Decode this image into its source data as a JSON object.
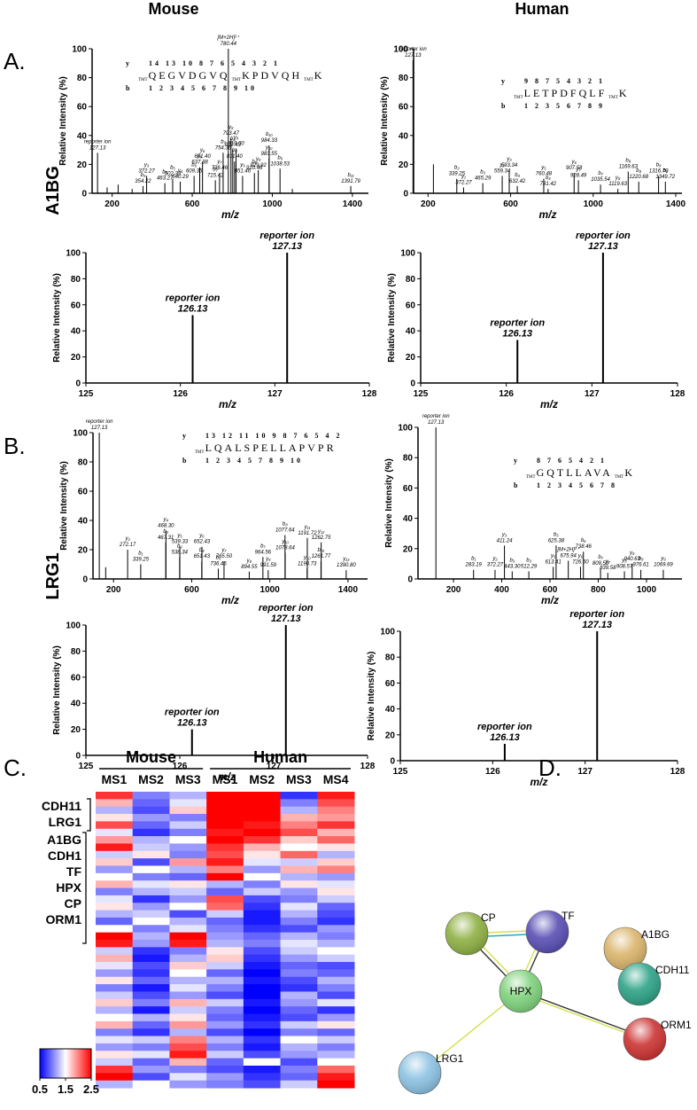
{
  "headers": {
    "columns": [
      "Mouse",
      "Human"
    ],
    "rows": [
      {
        "letter": "A.",
        "protein": "A1BG"
      },
      {
        "letter": "B.",
        "protein": "LRG1"
      }
    ],
    "panel_c": "C.",
    "panel_d": "D."
  },
  "network": {
    "nodes": [
      {
        "label": "CP",
        "color": "#8fb044"
      },
      {
        "label": "TF",
        "color": "#5a4fb4"
      },
      {
        "label": "A1BG",
        "color": "#dab46c"
      },
      {
        "label": "HPX",
        "color": "#7fd27c"
      },
      {
        "label": "CDH11",
        "color": "#2ea387"
      },
      {
        "label": "ORM1",
        "color": "#cc3333"
      },
      {
        "label": "LRG1",
        "color": "#8cc2e2"
      }
    ]
  },
  "chart_data": [
    {
      "type": "spectrum",
      "color": "#000000",
      "x_label": "m/z",
      "y_label": "Relative Intensity (%)",
      "xlim": [
        100,
        1480
      ],
      "xticks": [
        200,
        600,
        1000,
        1400
      ],
      "ylim": [
        0,
        100
      ],
      "yticks": [
        0,
        20,
        40,
        60,
        80,
        100
      ],
      "x": [
        127.13,
        175,
        230,
        300,
        354.22,
        372.27,
        463.27,
        502.33,
        540.29,
        609.35,
        637.38,
        651.4,
        715.42,
        736.46,
        754.36,
        780.44,
        793.47,
        802.43,
        811.4,
        819.0,
        851.46,
        910.46,
        929.92,
        983.55,
        984.33,
        1038.53,
        1100,
        1391.79
      ],
      "values": [
        28,
        4,
        6,
        3,
        5,
        12,
        7,
        10,
        8,
        12,
        18,
        22,
        9,
        14,
        28,
        100,
        38,
        30,
        22,
        31,
        12,
        14,
        16,
        24,
        33,
        17,
        3,
        5
      ],
      "peak_labels": [
        [
          "reporter ion",
          "127.13"
        ],
        null,
        null,
        null,
        [
          "b₃",
          "354.22"
        ],
        [
          "y₃",
          "372.27"
        ],
        [
          "b₃",
          "463.27"
        ],
        [
          "b₅",
          "502.33"
        ],
        [
          "y₄",
          "540.29"
        ],
        [
          "b₆",
          "609.35"
        ],
        [
          "y₅",
          "637.38"
        ],
        [
          "y₆",
          "651.40"
        ],
        [
          "b₇",
          "715.42"
        ],
        [
          "y₇",
          "736.46"
        ],
        [
          "b₇",
          "754.36"
        ],
        [
          "[M+2H]²⁺",
          "780.44"
        ],
        [
          "y₈",
          "793.47"
        ],
        [
          "b₈",
          "802.43"
        ],
        [
          "b₈",
          "811.40"
        ],
        [
          "y₉",
          "819.00"
        ],
        [
          "y₉",
          "851.46"
        ],
        [
          "b₉",
          "910.46"
        ],
        [
          "y₉",
          "929.92"
        ],
        [
          "y₁₀",
          "983.55"
        ],
        [
          "b₁₀",
          "984.33"
        ],
        [
          "b₉",
          "1038.53"
        ],
        null,
        [
          "b₁₁",
          "1391.79"
        ]
      ],
      "peptide": {
        "y_label": "y",
        "y_numbers": "14 13 10 8 7 6 5 4 3 2 1",
        "sequence": [
          "TMT",
          "QEGVDGVQ",
          "TMT",
          "KPDVQH",
          "TMT",
          "K"
        ],
        "b_label": "b",
        "b_numbers": "1 2 3 4 5 6 7 8 9 10"
      }
    },
    {
      "type": "spectrum",
      "color": "#000000",
      "x_label": "m/z",
      "y_label": "Relative Intensity (%)",
      "xlim": [
        130,
        1430
      ],
      "xticks": [
        200,
        600,
        1000,
        1400
      ],
      "ylim": [
        0,
        100
      ],
      "yticks": [
        0,
        20,
        40,
        60,
        80,
        100
      ],
      "x": [
        127.13,
        226,
        339.25,
        372.27,
        465.29,
        559.34,
        593.34,
        632.42,
        760.48,
        781.42,
        907.58,
        928.49,
        1035.54,
        1119.63,
        1169.63,
        1220.68,
        1316.7,
        1349.72
      ],
      "values": [
        92,
        20,
        10,
        4,
        7,
        12,
        16,
        5,
        10,
        3,
        14,
        9,
        6,
        3,
        15,
        8,
        12,
        8
      ],
      "peak_labels": [
        [
          "reporter ion",
          "127.13"
        ],
        null,
        [
          "b₃",
          "339.25"
        ],
        [
          "y₁",
          "372.27"
        ],
        [
          "b₃",
          "465.29"
        ],
        [
          "y₂",
          "559.34"
        ],
        [
          "y₃",
          "593.34"
        ],
        [
          "b₄",
          "632.42"
        ],
        [
          "y₅",
          "760.48"
        ],
        [
          "b₄",
          "781.42"
        ],
        [
          "y₆",
          "907.58"
        ],
        [
          "y₇",
          "928.49"
        ],
        [
          "b₇",
          "1035.54"
        ],
        [
          "y₈",
          "1119.63"
        ],
        [
          "b₈",
          "1169.63"
        ],
        [
          "b₈",
          "1220.68"
        ],
        [
          "b₉",
          "1316.70"
        ],
        [
          "b₉",
          "1349.72"
        ]
      ],
      "peptide": {
        "y_label": "y",
        "y_numbers": "9 8 7 5 4 3 2 1",
        "sequence": [
          "TMT",
          "LETPDFQLF",
          "TMT",
          "K"
        ],
        "b_label": "b",
        "b_numbers": "1 2 3 5 6 7 8 9"
      }
    },
    {
      "type": "spectrum",
      "color": "#000000",
      "x_label": "m/z",
      "y_label": "Relative Intensity (%)",
      "xlim": [
        125,
        128
      ],
      "xticks": [
        125,
        126,
        127,
        128
      ],
      "ylim": [
        0,
        100
      ],
      "yticks": [
        0,
        20,
        40,
        60,
        80,
        100
      ],
      "zoom": true,
      "x": [
        126.13,
        127.13
      ],
      "values": [
        52,
        100
      ],
      "peak_labels": [
        [
          "reporter ion",
          "126.13"
        ],
        [
          "reporter ion",
          "127.13"
        ]
      ]
    },
    {
      "type": "spectrum",
      "color": "#000000",
      "x_label": "m/z",
      "y_label": "Relative Intensity (%)",
      "xlim": [
        125,
        128
      ],
      "xticks": [
        125,
        126,
        127,
        128
      ],
      "ylim": [
        0,
        100
      ],
      "yticks": [
        0,
        20,
        40,
        60,
        80,
        100
      ],
      "zoom": true,
      "x": [
        126.13,
        127.13
      ],
      "values": [
        33,
        100
      ],
      "peak_labels": [
        [
          "reporter ion",
          "126.13"
        ],
        [
          "reporter ion",
          "127.13"
        ]
      ]
    },
    {
      "type": "spectrum",
      "color": "#000000",
      "x_label": "m/z",
      "y_label": "Relative Intensity (%)",
      "xlim": [
        95,
        1500
      ],
      "xticks": [
        200,
        600,
        1000,
        1400
      ],
      "ylim": [
        0,
        100
      ],
      "yticks": [
        0,
        20,
        40,
        60,
        80,
        100
      ],
      "x": [
        127.13,
        160,
        272.17,
        339.25,
        467.31,
        468.3,
        538.34,
        539.33,
        651.43,
        652.43,
        736.46,
        765.5,
        894.55,
        964.56,
        991.59,
        1077.64,
        1078.64,
        1190.73,
        1191.72,
        1261.77,
        1262.75,
        1390.8
      ],
      "values": [
        100,
        8,
        20,
        10,
        25,
        33,
        15,
        22,
        12,
        22,
        7,
        12,
        5,
        15,
        6,
        30,
        18,
        7,
        28,
        12,
        25,
        6
      ],
      "peak_labels": [
        [
          "reporter ion",
          "127.13"
        ],
        null,
        [
          "y₂",
          "272.17"
        ],
        [
          "b₁",
          "339.25"
        ],
        [
          "b₃",
          "467.31"
        ],
        [
          "y₄",
          "468.30"
        ],
        [
          "b₃",
          "538.34"
        ],
        [
          "y₅",
          "539.33"
        ],
        [
          "b₄",
          "651.43"
        ],
        [
          "y₆",
          "652.43"
        ],
        [
          "b₅",
          "736.46"
        ],
        [
          "y₇",
          "765.50"
        ],
        [
          "y₈",
          "894.55"
        ],
        [
          "b₇",
          "964.56"
        ],
        [
          "y₉",
          "991.59"
        ],
        [
          "b₈",
          "1077.64"
        ],
        [
          "y₁₀",
          "1078.64"
        ],
        [
          "y₁₀",
          "1190.73"
        ],
        [
          "y₁₁",
          "1191.72"
        ],
        [
          "b₁₀",
          "1261.77"
        ],
        [
          "y₁₂",
          "1262.75"
        ],
        [
          "y₁₃",
          "1390.80"
        ]
      ],
      "peptide": {
        "y_label": "y",
        "y_numbers": "13 12 11 10 9 8 7 6 5 4 2",
        "sequence": [
          "TMT",
          "LQALSPELLAPVPR"
        ],
        "b_label": "b",
        "b_numbers": "1 2 3 4 5 7 8 9 10"
      }
    },
    {
      "type": "spectrum",
      "color": "#000000",
      "x_label": "m/z",
      "y_label": "Relative Intensity (%)",
      "xlim": [
        53,
        1147
      ],
      "xticks": [
        200,
        400,
        600,
        800,
        1000
      ],
      "ylim": [
        0,
        100
      ],
      "yticks": [
        0,
        20,
        40,
        60,
        80,
        100
      ],
      "x": [
        127.13,
        283.19,
        372.27,
        411.24,
        443.3,
        512.29,
        613.41,
        625.38,
        675.94,
        726.5,
        738.46,
        809.5,
        839.58,
        908.57,
        940.63,
        976.61,
        1069.69
      ],
      "values": [
        100,
        6,
        6,
        22,
        5,
        5,
        8,
        22,
        12,
        8,
        18,
        7,
        4,
        5,
        10,
        6,
        6
      ],
      "peak_labels": [
        [
          "reporter ion",
          "127.13"
        ],
        [
          "b₁",
          "283.19"
        ],
        [
          "y₂",
          "372.27"
        ],
        [
          "y₃",
          "411.24"
        ],
        [
          "b₃",
          "443.30"
        ],
        [
          "b₃",
          "512.29"
        ],
        [
          "y₅",
          "613.41"
        ],
        [
          "b₅",
          "625.38"
        ],
        [
          "[M+2H]²⁺",
          "675.94"
        ],
        [
          "y₆",
          "726.50"
        ],
        [
          "b₆",
          "738.46"
        ],
        [
          "b₇",
          "809.50"
        ],
        [
          "y₇",
          "839.58"
        ],
        [
          "y₈",
          "908.57"
        ],
        [
          "y₈",
          "940.63"
        ],
        [
          "b₈",
          "976.61"
        ],
        [
          "y₉",
          "1069.69"
        ]
      ],
      "peptide": {
        "y_label": "y",
        "y_numbers": "8 7 6 5 4 2 1",
        "sequence": [
          "TMT",
          "GQTLLAVA",
          "TMT",
          "K"
        ],
        "b_label": "b",
        "b_numbers": "1 2 3 4 5 6 7 8"
      }
    },
    {
      "type": "spectrum",
      "color": "#000000",
      "x_label": "m/z",
      "y_label": "Relative Intensity (%)",
      "xlim": [
        125,
        128
      ],
      "xticks": [
        125,
        126,
        127,
        128
      ],
      "ylim": [
        0,
        100
      ],
      "yticks": [
        0,
        20,
        40,
        60,
        80,
        100
      ],
      "zoom": true,
      "x": [
        126.13,
        127.13
      ],
      "values": [
        20,
        100
      ],
      "peak_labels": [
        [
          "reporter ion",
          "126.13"
        ],
        [
          "reporter ion",
          "127.13"
        ]
      ]
    },
    {
      "type": "spectrum",
      "color": "#000000",
      "x_label": "m/z",
      "y_label": "Relative Intensity (%)",
      "xlim": [
        125,
        128
      ],
      "xticks": [
        125,
        126,
        127,
        128
      ],
      "ylim": [
        0,
        100
      ],
      "yticks": [
        0,
        20,
        40,
        60,
        80,
        100
      ],
      "zoom": true,
      "x": [
        126.13,
        127.13
      ],
      "values": [
        13,
        100
      ],
      "peak_labels": [
        [
          "reporter ion",
          "126.13"
        ],
        [
          "reporter ion",
          "127.13"
        ]
      ]
    },
    {
      "type": "heatmap",
      "groups": [
        {
          "name": "Mouse",
          "columns": [
            "MS1",
            "MS2",
            "MS3"
          ]
        },
        {
          "name": "Human",
          "columns": [
            "MS1",
            "MS2",
            "MS3",
            "MS4"
          ]
        }
      ],
      "row_label_groups": [
        [
          "CDH11",
          "LRG1"
        ],
        [
          "A1BG",
          "CDH1",
          "TF",
          "HPX",
          "CP",
          "ORM1"
        ]
      ],
      "vlim": [
        0.5,
        2.5
      ],
      "colorbar_ticks": [
        0.5,
        1.5,
        2.5
      ],
      "low_color": "#0000ff",
      "mid_color": "#ffffff",
      "high_color": "#ff0000",
      "values": [
        [
          2.3,
          1.0,
          1.2,
          2.5,
          2.5,
          0.7,
          2.4
        ],
        [
          1.8,
          0.9,
          1.4,
          2.5,
          2.5,
          1.0,
          2.2
        ],
        [
          1.2,
          0.8,
          1.7,
          2.5,
          2.5,
          1.2,
          2.0
        ],
        [
          1.6,
          1.1,
          1.0,
          2.5,
          2.5,
          1.8,
          1.9
        ],
        [
          2.2,
          0.9,
          1.3,
          2.5,
          2.4,
          2.0,
          2.3
        ],
        [
          1.4,
          0.7,
          1.0,
          2.4,
          2.5,
          2.2,
          1.8
        ],
        [
          1.9,
          1.2,
          1.5,
          2.5,
          2.3,
          1.7,
          2.1
        ],
        [
          2.4,
          1.3,
          1.1,
          2.3,
          1.8,
          1.5,
          1.6
        ],
        [
          1.3,
          1.6,
          1.0,
          2.2,
          1.6,
          2.1,
          1.2
        ],
        [
          1.7,
          0.8,
          1.9,
          2.4,
          1.4,
          1.3,
          1.7
        ],
        [
          1.1,
          1.5,
          1.2,
          2.0,
          1.1,
          1.8,
          2.0
        ],
        [
          1.5,
          1.0,
          0.9,
          2.5,
          1.5,
          1.2,
          1.1
        ],
        [
          1.8,
          1.4,
          1.6,
          1.2,
          1.0,
          1.6,
          1.4
        ],
        [
          1.0,
          1.2,
          1.3,
          0.9,
          1.3,
          1.1,
          1.6
        ],
        [
          1.4,
          0.7,
          1.1,
          2.2,
          0.8,
          1.0,
          1.3
        ],
        [
          1.6,
          1.1,
          1.5,
          2.1,
          0.7,
          1.4,
          0.9
        ],
        [
          1.2,
          1.3,
          0.8,
          1.3,
          0.6,
          1.2,
          0.8
        ],
        [
          0.9,
          1.5,
          1.2,
          0.9,
          0.6,
          1.0,
          0.7
        ],
        [
          1.5,
          1.0,
          1.4,
          1.0,
          0.7,
          0.8,
          1.1
        ],
        [
          2.5,
          1.2,
          2.5,
          1.1,
          0.9,
          1.2,
          1.0
        ],
        [
          2.4,
          1.1,
          2.4,
          1.2,
          1.0,
          1.4,
          1.2
        ],
        [
          1.3,
          0.7,
          1.0,
          1.6,
          0.8,
          1.3,
          1.5
        ],
        [
          1.8,
          0.6,
          1.2,
          1.7,
          0.7,
          1.1,
          1.3
        ],
        [
          1.4,
          0.8,
          1.7,
          1.3,
          0.6,
          0.9,
          0.8
        ],
        [
          1.1,
          0.7,
          1.5,
          0.9,
          0.5,
          1.0,
          0.9
        ],
        [
          1.6,
          0.9,
          1.2,
          1.2,
          0.6,
          0.8,
          1.2
        ],
        [
          1.0,
          0.6,
          1.4,
          1.0,
          0.5,
          0.7,
          1.0
        ],
        [
          1.3,
          0.8,
          1.1,
          0.8,
          0.5,
          1.2,
          0.8
        ],
        [
          1.7,
          1.0,
          1.8,
          1.3,
          0.6,
          1.1,
          1.4
        ],
        [
          1.2,
          0.6,
          1.3,
          1.0,
          0.5,
          0.9,
          0.7
        ],
        [
          1.5,
          1.2,
          1.6,
          0.9,
          0.6,
          0.8,
          1.1
        ],
        [
          1.8,
          0.9,
          1.9,
          1.1,
          0.7,
          1.3,
          1.6
        ],
        [
          1.0,
          0.7,
          1.2,
          0.8,
          0.5,
          1.0,
          0.9
        ],
        [
          1.4,
          1.3,
          2.0,
          1.2,
          0.7,
          1.5,
          1.3
        ],
        [
          1.1,
          1.0,
          2.2,
          1.0,
          0.6,
          1.2,
          1.0
        ],
        [
          1.6,
          1.4,
          2.4,
          1.3,
          0.8,
          1.1,
          1.2
        ],
        [
          1.3,
          0.9,
          1.8,
          0.9,
          1.5,
          0.8,
          1.5
        ],
        [
          2.3,
          1.1,
          1.0,
          0.8,
          0.6,
          1.0,
          2.1
        ],
        [
          2.5,
          0.8,
          1.4,
          1.1,
          0.7,
          0.9,
          2.4
        ],
        [
          1.2,
          1.5,
          1.1,
          1.0,
          0.8,
          1.3,
          2.5
        ]
      ]
    }
  ]
}
